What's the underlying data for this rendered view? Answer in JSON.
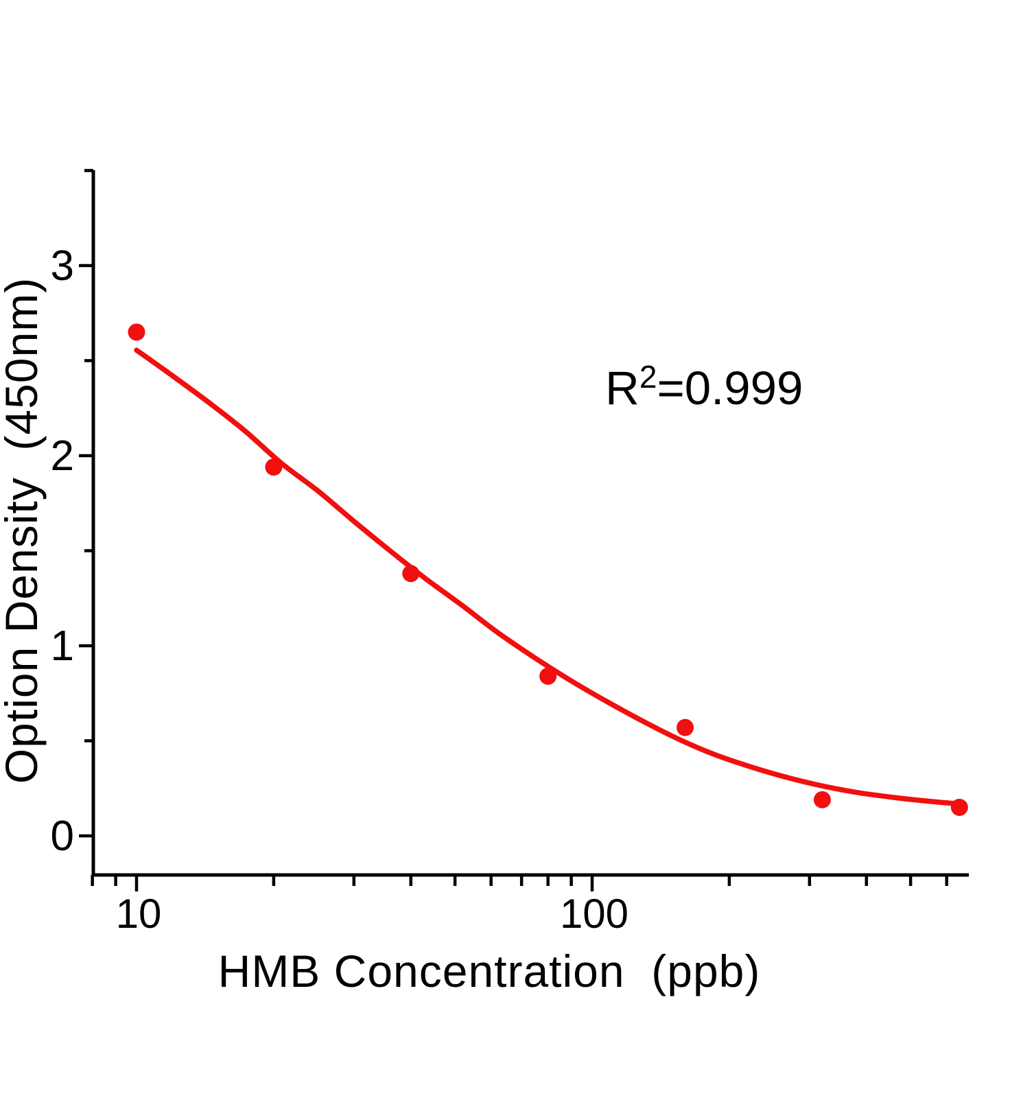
{
  "colors": {
    "series_red": "#f10f0f",
    "axis_black": "#000000",
    "background": "#ffffff"
  },
  "chart_data": {
    "type": "scatter",
    "title": "",
    "xlabel": "HMB Concentration  (ppb)",
    "ylabel": "Option Density  (450nm)",
    "x_scale": "log",
    "xlim": [
      8,
      670
    ],
    "ylim": [
      -0.2,
      3.5
    ],
    "grid": false,
    "legend": "none",
    "annotation": {
      "base": "R",
      "sup": "2",
      "rest": "=0.999"
    },
    "x_major_ticks": [
      {
        "value": 10,
        "label": "10"
      },
      {
        "value": 100,
        "label": "100"
      }
    ],
    "x_minor_ticks": [
      8,
      9,
      20,
      30,
      40,
      50,
      60,
      70,
      80,
      90,
      200,
      300,
      400,
      500,
      600
    ],
    "y_major_ticks": [
      {
        "value": 0,
        "label": "0"
      },
      {
        "value": 1,
        "label": "1"
      },
      {
        "value": 2,
        "label": "2"
      },
      {
        "value": 3,
        "label": "3"
      }
    ],
    "y_minor_ticks": [
      0.5,
      1.5,
      2.5,
      3.5
    ],
    "series": [
      {
        "name": "standard-points",
        "marker": "circle",
        "points": [
          [
            10,
            2.65
          ],
          [
            20,
            1.94
          ],
          [
            40,
            1.38
          ],
          [
            80,
            0.84
          ],
          [
            160,
            0.57
          ],
          [
            320,
            0.19
          ],
          [
            640,
            0.15
          ]
        ]
      }
    ],
    "fit_curve": {
      "name": "4pl-fit",
      "r_squared": 0.999,
      "points": [
        [
          10,
          2.555
        ],
        [
          12,
          2.42
        ],
        [
          14.4,
          2.28
        ],
        [
          17.3,
          2.13
        ],
        [
          20.8,
          1.96
        ],
        [
          25,
          1.815
        ],
        [
          30,
          1.655
        ],
        [
          36,
          1.5
        ],
        [
          43,
          1.355
        ],
        [
          52,
          1.21
        ],
        [
          62,
          1.07
        ],
        [
          75,
          0.935
        ],
        [
          90,
          0.815
        ],
        [
          108,
          0.705
        ],
        [
          130,
          0.6
        ],
        [
          156,
          0.505
        ],
        [
          187,
          0.425
        ],
        [
          225,
          0.36
        ],
        [
          270,
          0.305
        ],
        [
          324,
          0.26
        ],
        [
          389,
          0.225
        ],
        [
          467,
          0.2
        ],
        [
          560,
          0.18
        ],
        [
          640,
          0.168
        ]
      ]
    }
  }
}
